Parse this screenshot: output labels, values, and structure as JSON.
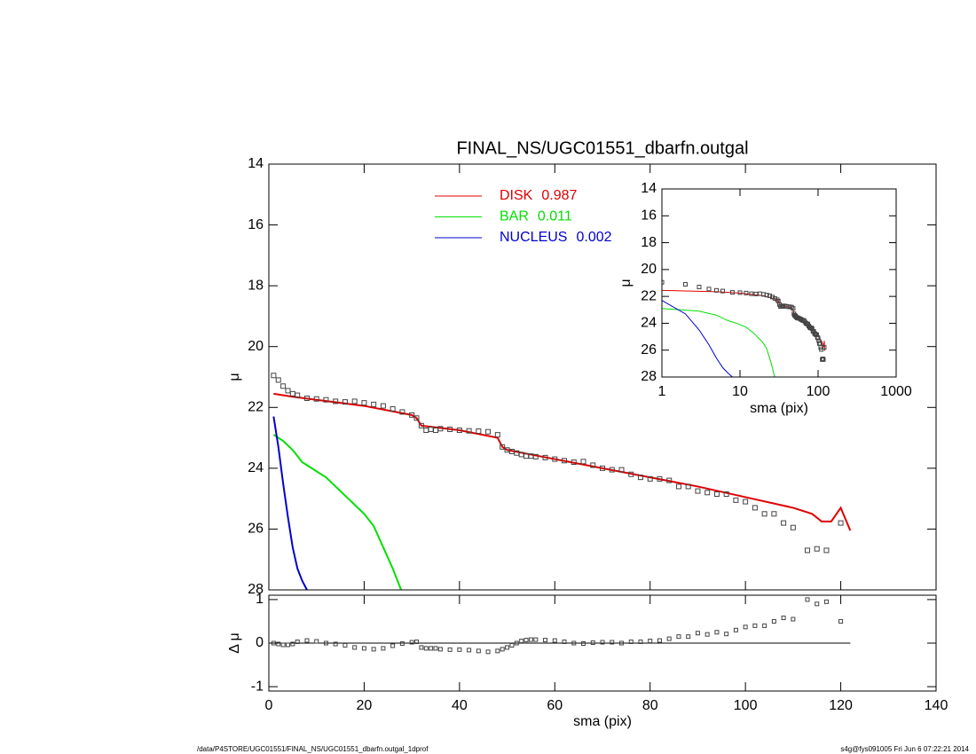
{
  "chart_data": [
    {
      "type": "scatter",
      "title": "FINAL_NS/UGC01551_dbarfn.outgal",
      "ylabel": "μ",
      "x": [
        1,
        2,
        3,
        4,
        5,
        6,
        8,
        10,
        12,
        14,
        16,
        18,
        20,
        22,
        24,
        26,
        28,
        30,
        31,
        32,
        33,
        34,
        35,
        36,
        38,
        40,
        42,
        44,
        46,
        48,
        49,
        50,
        51,
        52,
        53,
        54,
        55,
        56,
        58,
        60,
        62,
        64,
        66,
        68,
        70,
        72,
        74,
        76,
        78,
        80,
        82,
        84,
        86,
        88,
        90,
        92,
        94,
        96,
        98,
        100,
        102,
        104,
        106,
        108,
        110,
        113,
        115,
        117,
        120
      ],
      "values": [
        20.95,
        21.1,
        21.3,
        21.45,
        21.55,
        21.6,
        21.7,
        21.72,
        21.75,
        21.8,
        21.82,
        21.8,
        21.85,
        21.9,
        21.95,
        22.05,
        22.15,
        22.25,
        22.35,
        22.6,
        22.75,
        22.72,
        22.75,
        22.7,
        22.72,
        22.75,
        22.77,
        22.78,
        22.8,
        22.9,
        23.3,
        23.4,
        23.45,
        23.5,
        23.55,
        23.6,
        23.6,
        23.62,
        23.65,
        23.7,
        23.75,
        23.8,
        23.78,
        23.9,
        24.0,
        24.05,
        24.05,
        24.2,
        24.3,
        24.35,
        24.35,
        24.4,
        24.6,
        24.6,
        24.75,
        24.8,
        24.85,
        24.85,
        25.05,
        25.1,
        25.3,
        25.5,
        25.5,
        25.8,
        25.95,
        26.7,
        26.65,
        26.7,
        25.8
      ],
      "marker_color": "#444444",
      "series": [
        {
          "name": "DISK",
          "fraction": 0.987,
          "color": "#e00000",
          "x": [
            1,
            5,
            10,
            20,
            30,
            31,
            32,
            40,
            48,
            49,
            50,
            60,
            70,
            80,
            90,
            100,
            110,
            114,
            116,
            118,
            120,
            122
          ],
          "values": [
            21.55,
            21.65,
            21.75,
            21.95,
            22.25,
            22.35,
            22.6,
            22.75,
            23.0,
            23.3,
            23.4,
            23.7,
            24.0,
            24.3,
            24.6,
            24.95,
            25.3,
            25.5,
            25.75,
            25.75,
            25.3,
            26.05
          ]
        },
        {
          "name": "BAR",
          "fraction": 0.011,
          "color": "#00e000",
          "x": [
            1,
            3,
            5,
            7,
            9,
            10,
            12,
            14,
            16,
            18,
            20,
            22,
            24,
            26,
            28
          ],
          "values": [
            22.9,
            23.1,
            23.4,
            23.8,
            24.0,
            24.1,
            24.3,
            24.6,
            24.9,
            25.2,
            25.5,
            25.9,
            26.6,
            27.3,
            28.1
          ]
        },
        {
          "name": "NUCLEUS",
          "fraction": 0.002,
          "color": "#0000d0",
          "x": [
            1,
            2,
            3,
            4,
            5,
            6,
            7,
            8,
            9
          ],
          "values": [
            22.3,
            23.3,
            24.5,
            25.6,
            26.6,
            27.3,
            27.7,
            28.0,
            28.2
          ]
        }
      ],
      "xlim": [
        0,
        140
      ],
      "xticks": [
        0,
        20,
        40,
        60,
        80,
        100,
        120,
        140
      ],
      "ylim": [
        14,
        28
      ],
      "yticks": [
        14,
        16,
        18,
        20,
        22,
        24,
        26,
        28
      ],
      "legend": "upper left"
    },
    {
      "type": "residual",
      "xlabel": "sma (pix)",
      "ylabel": "Δ μ",
      "x": [
        1,
        2,
        3,
        4,
        5,
        6,
        8,
        10,
        12,
        14,
        16,
        18,
        20,
        22,
        24,
        26,
        28,
        30,
        31,
        32,
        33,
        34,
        35,
        36,
        38,
        40,
        42,
        44,
        46,
        48,
        49,
        50,
        51,
        52,
        53,
        54,
        55,
        56,
        58,
        60,
        62,
        64,
        66,
        68,
        70,
        72,
        74,
        76,
        78,
        80,
        82,
        84,
        86,
        88,
        90,
        92,
        94,
        96,
        98,
        100,
        102,
        104,
        106,
        108,
        110,
        113,
        115,
        117,
        120
      ],
      "values": [
        0,
        -0.02,
        -0.04,
        -0.04,
        -0.02,
        0.03,
        0.06,
        0.04,
        0,
        -0.02,
        -0.05,
        -0.1,
        -0.12,
        -0.14,
        -0.12,
        -0.06,
        -0.01,
        0.02,
        0.03,
        -0.1,
        -0.12,
        -0.12,
        -0.12,
        -0.14,
        -0.15,
        -0.15,
        -0.16,
        -0.18,
        -0.2,
        -0.18,
        -0.14,
        -0.1,
        -0.05,
        0,
        0.05,
        0.07,
        0.08,
        0.08,
        0.07,
        0.06,
        0.03,
        0,
        -0.01,
        0.01,
        0.02,
        0.02,
        0,
        0.03,
        0.03,
        0.05,
        0.06,
        0.1,
        0.15,
        0.15,
        0.23,
        0.2,
        0.25,
        0.21,
        0.3,
        0.37,
        0.4,
        0.4,
        0.5,
        0.58,
        0.55,
        1.0,
        0.9,
        0.95,
        0.5
      ],
      "marker_color": "#444444",
      "xlim": [
        0,
        140
      ],
      "xticks": [
        0,
        20,
        40,
        60,
        80,
        100,
        120,
        140
      ],
      "ylim": [
        -1.1,
        1.1
      ],
      "yticks": [
        1,
        0,
        -1
      ]
    },
    {
      "type": "inset",
      "xlabel": "sma (pix)",
      "ylabel": "μ",
      "log_x": true,
      "xlim": [
        1,
        1000
      ],
      "xticks": [
        1,
        10,
        100,
        1000
      ],
      "ylim": [
        14,
        28
      ],
      "yticks": [
        14,
        16,
        18,
        20,
        22,
        24,
        26,
        28
      ]
    }
  ],
  "footer": {
    "left": "/data/P4STORE/UGC01551/FINAL_NS/UGC01551_dbarfn.outgal_1dprof",
    "right": "s4g@fys091005  Fri Jun  6 07:22:21 2014"
  }
}
